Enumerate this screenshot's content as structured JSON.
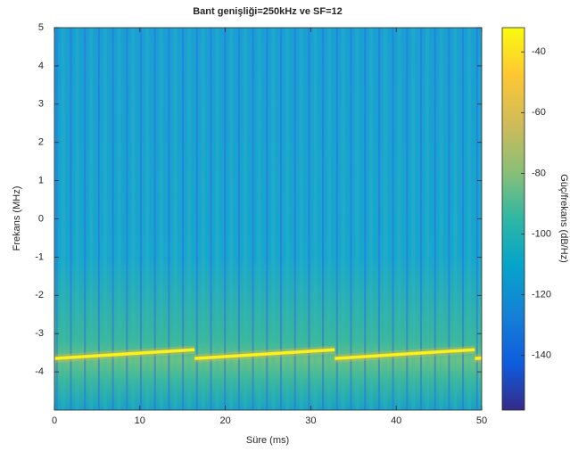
{
  "chart_data": {
    "type": "spectrogram",
    "title": "Bant genişliği=250kHz ve SF=12",
    "x_label": "Süre (ms)",
    "y_label": "Frekans (MHz)",
    "colorbar_label": "Güç/frekans (dB/Hz)",
    "xlim": [
      0,
      50
    ],
    "xticks": [
      0,
      10,
      20,
      30,
      40,
      50
    ],
    "ylim": [
      -5,
      5
    ],
    "yticks": [
      -4,
      -3,
      -2,
      -1,
      0,
      1,
      2,
      3,
      4,
      5
    ],
    "clim": [
      -158,
      -32
    ],
    "cticks": [
      -140,
      -120,
      -100,
      -80,
      -60,
      -40
    ],
    "series": [
      {
        "color": "#f9f21c",
        "x": [
          0,
          16.4
        ],
        "values": [
          -3.65,
          -3.42
        ]
      },
      {
        "color": "#f9f21c",
        "x": [
          16.4,
          32.8
        ],
        "values": [
          -3.65,
          -3.42
        ]
      },
      {
        "color": "#f9f21c",
        "x": [
          32.8,
          49.2
        ],
        "values": [
          -3.65,
          -3.42
        ]
      },
      {
        "color": "#f9f21c",
        "x": [
          49.2,
          50
        ],
        "values": [
          -3.65,
          -3.64
        ]
      }
    ]
  }
}
